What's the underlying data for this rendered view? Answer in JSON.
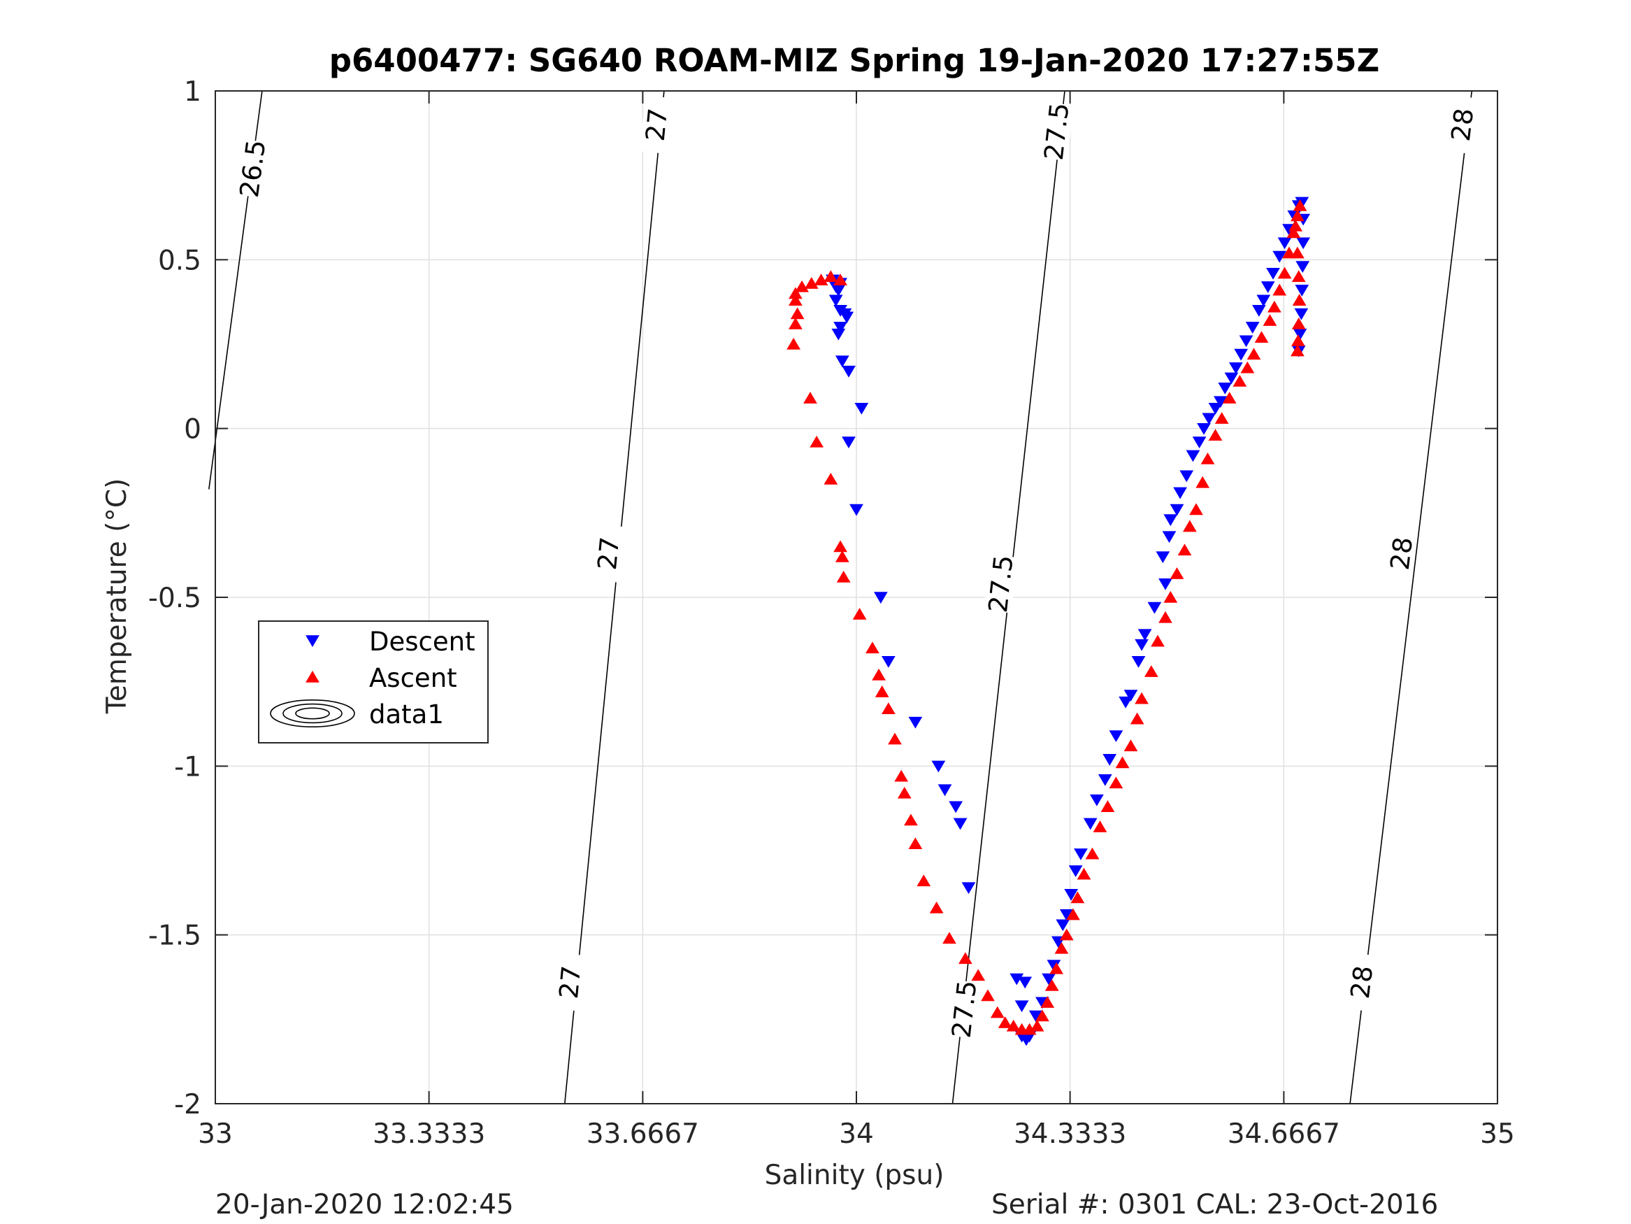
{
  "chart_data": {
    "type": "scatter",
    "title": "p6400477: SG640 ROAM-MIZ Spring 19-Jan-2020 17:27:55Z",
    "xlabel": "Salinity (psu)",
    "ylabel": "Temperature (°C)",
    "xlim": [
      33,
      35
    ],
    "ylim": [
      -2,
      1
    ],
    "xticks": [
      "33",
      "33.3333",
      "33.6667",
      "34",
      "34.3333",
      "34.6667",
      "35"
    ],
    "xtick_values": [
      33,
      33.3333,
      33.6667,
      34,
      34.3333,
      34.6667,
      35
    ],
    "yticks": [
      "-2",
      "-1.5",
      "-1",
      "-0.5",
      "0",
      "0.5",
      "1"
    ],
    "ytick_values": [
      -2,
      -1.5,
      -1,
      -0.5,
      0,
      0.5,
      1
    ],
    "grid": true,
    "legend_position": "middle-left",
    "series": [
      {
        "name": "Descent",
        "marker": "triangle-down",
        "color": "#0000ff",
        "points": [
          [
            33.963,
            0.44
          ],
          [
            33.968,
            0.42
          ],
          [
            33.972,
            0.41
          ],
          [
            33.975,
            0.43
          ],
          [
            33.968,
            0.38
          ],
          [
            33.975,
            0.35
          ],
          [
            33.982,
            0.34
          ],
          [
            33.975,
            0.3
          ],
          [
            33.972,
            0.28
          ],
          [
            33.985,
            0.33
          ],
          [
            33.978,
            0.2
          ],
          [
            33.988,
            0.17
          ],
          [
            34.008,
            0.06
          ],
          [
            33.988,
            -0.04
          ],
          [
            34.0,
            -0.24
          ],
          [
            34.038,
            -0.5
          ],
          [
            34.05,
            -0.69
          ],
          [
            34.092,
            -0.87
          ],
          [
            34.128,
            -1.0
          ],
          [
            34.138,
            -1.07
          ],
          [
            34.155,
            -1.12
          ],
          [
            34.162,
            -1.17
          ],
          [
            34.175,
            -1.36
          ],
          [
            34.25,
            -1.63
          ],
          [
            34.263,
            -1.64
          ],
          [
            34.258,
            -1.71
          ],
          [
            34.258,
            -1.8
          ],
          [
            34.265,
            -1.81
          ],
          [
            34.27,
            -1.8
          ],
          [
            34.28,
            -1.74
          ],
          [
            34.29,
            -1.7
          ],
          [
            34.3,
            -1.63
          ],
          [
            34.308,
            -1.59
          ],
          [
            34.315,
            -1.52
          ],
          [
            34.322,
            -1.47
          ],
          [
            34.328,
            -1.44
          ],
          [
            34.335,
            -1.38
          ],
          [
            34.342,
            -1.31
          ],
          [
            34.35,
            -1.26
          ],
          [
            34.365,
            -1.17
          ],
          [
            34.375,
            -1.1
          ],
          [
            34.388,
            -1.04
          ],
          [
            34.395,
            -0.98
          ],
          [
            34.405,
            -0.91
          ],
          [
            34.42,
            -0.81
          ],
          [
            34.428,
            -0.79
          ],
          [
            34.44,
            -0.69
          ],
          [
            34.445,
            -0.64
          ],
          [
            34.45,
            -0.61
          ],
          [
            34.465,
            -0.53
          ],
          [
            34.482,
            -0.46
          ],
          [
            34.478,
            -0.38
          ],
          [
            34.488,
            -0.32
          ],
          [
            34.49,
            -0.27
          ],
          [
            34.5,
            -0.24
          ],
          [
            34.505,
            -0.19
          ],
          [
            34.515,
            -0.14
          ],
          [
            34.525,
            -0.08
          ],
          [
            34.535,
            -0.04
          ],
          [
            34.542,
            0.0
          ],
          [
            34.55,
            0.03
          ],
          [
            34.56,
            0.06
          ],
          [
            34.568,
            0.08
          ],
          [
            34.575,
            0.12
          ],
          [
            34.585,
            0.15
          ],
          [
            34.592,
            0.18
          ],
          [
            34.6,
            0.22
          ],
          [
            34.608,
            0.26
          ],
          [
            34.618,
            0.3
          ],
          [
            34.628,
            0.35
          ],
          [
            34.635,
            0.38
          ],
          [
            34.642,
            0.42
          ],
          [
            34.65,
            0.46
          ],
          [
            34.66,
            0.51
          ],
          [
            34.668,
            0.55
          ],
          [
            34.675,
            0.59
          ],
          [
            34.683,
            0.63
          ],
          [
            34.69,
            0.66
          ],
          [
            34.695,
            0.67
          ],
          [
            34.697,
            0.62
          ],
          [
            34.697,
            0.55
          ],
          [
            34.696,
            0.48
          ],
          [
            34.695,
            0.41
          ],
          [
            34.694,
            0.34
          ],
          [
            34.692,
            0.28
          ],
          [
            34.69,
            0.23
          ]
        ]
      },
      {
        "name": "Ascent",
        "marker": "triangle-up",
        "color": "#ff0000",
        "points": [
          [
            33.905,
            0.4
          ],
          [
            33.915,
            0.42
          ],
          [
            33.93,
            0.43
          ],
          [
            33.945,
            0.44
          ],
          [
            33.96,
            0.45
          ],
          [
            33.975,
            0.44
          ],
          [
            33.905,
            0.38
          ],
          [
            33.908,
            0.34
          ],
          [
            33.905,
            0.31
          ],
          [
            33.902,
            0.25
          ],
          [
            33.928,
            0.09
          ],
          [
            33.938,
            -0.04
          ],
          [
            33.96,
            -0.15
          ],
          [
            33.975,
            -0.35
          ],
          [
            33.978,
            -0.38
          ],
          [
            33.98,
            -0.44
          ],
          [
            34.005,
            -0.55
          ],
          [
            34.025,
            -0.65
          ],
          [
            34.035,
            -0.73
          ],
          [
            34.04,
            -0.78
          ],
          [
            34.05,
            -0.83
          ],
          [
            34.06,
            -0.92
          ],
          [
            34.07,
            -1.03
          ],
          [
            34.075,
            -1.08
          ],
          [
            34.085,
            -1.16
          ],
          [
            34.092,
            -1.23
          ],
          [
            34.105,
            -1.34
          ],
          [
            34.125,
            -1.42
          ],
          [
            34.145,
            -1.51
          ],
          [
            34.17,
            -1.57
          ],
          [
            34.19,
            -1.62
          ],
          [
            34.205,
            -1.68
          ],
          [
            34.22,
            -1.73
          ],
          [
            34.232,
            -1.76
          ],
          [
            34.245,
            -1.77
          ],
          [
            34.258,
            -1.78
          ],
          [
            34.27,
            -1.78
          ],
          [
            34.282,
            -1.77
          ],
          [
            34.29,
            -1.74
          ],
          [
            34.298,
            -1.7
          ],
          [
            34.305,
            -1.65
          ],
          [
            34.312,
            -1.6
          ],
          [
            34.32,
            -1.54
          ],
          [
            34.328,
            -1.5
          ],
          [
            34.338,
            -1.44
          ],
          [
            34.345,
            -1.39
          ],
          [
            34.355,
            -1.32
          ],
          [
            34.368,
            -1.26
          ],
          [
            34.38,
            -1.18
          ],
          [
            34.392,
            -1.12
          ],
          [
            34.405,
            -1.05
          ],
          [
            34.415,
            -0.99
          ],
          [
            34.428,
            -0.94
          ],
          [
            34.438,
            -0.86
          ],
          [
            34.445,
            -0.8
          ],
          [
            34.46,
            -0.72
          ],
          [
            34.47,
            -0.63
          ],
          [
            34.482,
            -0.56
          ],
          [
            34.49,
            -0.5
          ],
          [
            34.5,
            -0.43
          ],
          [
            34.512,
            -0.36
          ],
          [
            34.52,
            -0.29
          ],
          [
            34.53,
            -0.24
          ],
          [
            34.54,
            -0.16
          ],
          [
            34.548,
            -0.09
          ],
          [
            34.56,
            -0.02
          ],
          [
            34.57,
            0.03
          ],
          [
            34.582,
            0.09
          ],
          [
            34.598,
            0.14
          ],
          [
            34.61,
            0.18
          ],
          [
            34.62,
            0.22
          ],
          [
            34.632,
            0.27
          ],
          [
            34.645,
            0.32
          ],
          [
            34.652,
            0.36
          ],
          [
            34.66,
            0.41
          ],
          [
            34.668,
            0.46
          ],
          [
            34.675,
            0.52
          ],
          [
            34.682,
            0.58
          ],
          [
            34.688,
            0.63
          ],
          [
            34.692,
            0.66
          ],
          [
            34.685,
            0.6
          ],
          [
            34.688,
            0.52
          ],
          [
            34.69,
            0.45
          ],
          [
            34.691,
            0.38
          ],
          [
            34.69,
            0.31
          ],
          [
            34.689,
            0.26
          ],
          [
            34.688,
            0.23
          ]
        ]
      }
    ],
    "contours": [
      {
        "label": "26.5",
        "points": [
          [
            33.073,
            1.0
          ],
          [
            32.99,
            -0.18
          ]
        ],
        "labels_at": [
          [
            33.058,
            0.77
          ]
        ]
      },
      {
        "label": "27",
        "points": [
          [
            33.7,
            1.0
          ],
          [
            33.545,
            -2.0
          ]
        ],
        "labels_at": [
          [
            33.688,
            0.9
          ],
          [
            33.613,
            -0.37
          ],
          [
            33.553,
            -1.64
          ]
        ]
      },
      {
        "label": "27.5",
        "points": [
          [
            34.325,
            1.0
          ],
          [
            34.15,
            -2.0
          ]
        ],
        "labels_at": [
          [
            34.312,
            0.88
          ],
          [
            34.225,
            -0.46
          ],
          [
            34.168,
            -1.72
          ]
        ]
      },
      {
        "label": "28",
        "points": [
          [
            34.96,
            1.0
          ],
          [
            34.77,
            -2.0
          ]
        ],
        "labels_at": [
          [
            34.945,
            0.9
          ],
          [
            34.85,
            -0.37
          ],
          [
            34.788,
            -1.64
          ]
        ]
      }
    ],
    "legend": [
      "Descent",
      "Ascent",
      "data1"
    ]
  },
  "footer": {
    "left": "20-Jan-2020 12:02:45",
    "right": "Serial #: 0301  CAL: 23-Oct-2016"
  },
  "colors": {
    "descent": "#0000ff",
    "ascent": "#ff0000",
    "contour": "#000000",
    "grid": "#e0e0e0",
    "axis": "#262626"
  }
}
